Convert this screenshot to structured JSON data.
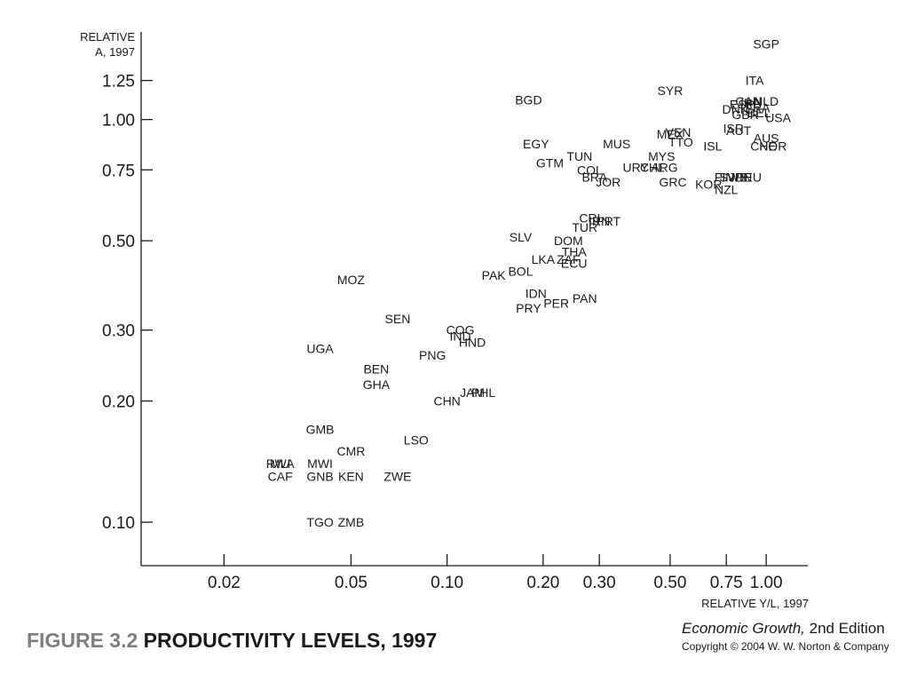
{
  "figure": {
    "number": "FIGURE 3.2",
    "title": "PRODUCTIVITY LEVELS, 1997",
    "book_title_italic": "Economic Growth,",
    "book_edition": "2nd Edition",
    "copyright": "Copyright © 2004 W. W. Norton & Company"
  },
  "chart_data": {
    "type": "scatter",
    "xlabel": "RELATIVE Y/L, 1997",
    "ylabel_line1": "RELATIVE",
    "ylabel_line2": "A, 1997",
    "x_scale": "log",
    "y_scale": "log",
    "xlim": [
      0.011,
      1.35
    ],
    "ylim": [
      0.078,
      1.65
    ],
    "x_ticks": [
      0.02,
      0.05,
      0.1,
      0.2,
      0.3,
      0.5,
      0.75,
      1.0
    ],
    "x_tick_labels": [
      "0.02",
      "0.05",
      "0.10",
      "0.20",
      "0.30",
      "0.50",
      "0.75",
      "1.00"
    ],
    "y_ticks": [
      0.1,
      0.2,
      0.3,
      0.5,
      0.75,
      1.0,
      1.25
    ],
    "y_tick_labels": [
      "0.10",
      "0.20",
      "0.30",
      "0.50",
      "0.75",
      "1.00",
      "1.25"
    ],
    "grid": false,
    "legend": "none",
    "points": [
      {
        "label": "SGP",
        "x": 1.0,
        "y": 1.54
      },
      {
        "label": "ITA",
        "x": 0.92,
        "y": 1.25
      },
      {
        "label": "BGD",
        "x": 0.18,
        "y": 1.12
      },
      {
        "label": "SYR",
        "x": 0.5,
        "y": 1.18
      },
      {
        "label": "IRL",
        "x": 0.89,
        "y": 1.1
      },
      {
        "label": "CAN",
        "x": 0.88,
        "y": 1.11
      },
      {
        "label": "FRA",
        "x": 0.94,
        "y": 1.07
      },
      {
        "label": "ESP",
        "x": 0.84,
        "y": 1.09
      },
      {
        "label": "NLD",
        "x": 1.0,
        "y": 1.11
      },
      {
        "label": "DNK",
        "x": 0.8,
        "y": 1.06
      },
      {
        "label": "GBR",
        "x": 0.86,
        "y": 1.03
      },
      {
        "label": "BEL",
        "x": 0.95,
        "y": 1.04
      },
      {
        "label": "USA",
        "x": 1.09,
        "y": 1.01
      },
      {
        "label": "ISR",
        "x": 0.79,
        "y": 0.95
      },
      {
        "label": "AUT",
        "x": 0.82,
        "y": 0.94
      },
      {
        "label": "VEN",
        "x": 0.53,
        "y": 0.93
      },
      {
        "label": "MEX",
        "x": 0.5,
        "y": 0.92
      },
      {
        "label": "TTO",
        "x": 0.54,
        "y": 0.88
      },
      {
        "label": "AUS",
        "x": 1.0,
        "y": 0.9
      },
      {
        "label": "CHE",
        "x": 0.98,
        "y": 0.86
      },
      {
        "label": "NOR",
        "x": 1.05,
        "y": 0.86
      },
      {
        "label": "ISL",
        "x": 0.68,
        "y": 0.86
      },
      {
        "label": "EGY",
        "x": 0.19,
        "y": 0.87
      },
      {
        "label": "MUS",
        "x": 0.34,
        "y": 0.87
      },
      {
        "label": "TUN",
        "x": 0.26,
        "y": 0.81
      },
      {
        "label": "MYS",
        "x": 0.47,
        "y": 0.81
      },
      {
        "label": "GTM",
        "x": 0.21,
        "y": 0.78
      },
      {
        "label": "URY",
        "x": 0.39,
        "y": 0.76
      },
      {
        "label": "CHL",
        "x": 0.44,
        "y": 0.76
      },
      {
        "label": "ARG",
        "x": 0.48,
        "y": 0.76
      },
      {
        "label": "COL",
        "x": 0.28,
        "y": 0.75
      },
      {
        "label": "BRA",
        "x": 0.29,
        "y": 0.72
      },
      {
        "label": "JOR",
        "x": 0.32,
        "y": 0.7
      },
      {
        "label": "GRC",
        "x": 0.51,
        "y": 0.7
      },
      {
        "label": "FIN",
        "x": 0.74,
        "y": 0.72
      },
      {
        "label": "SWE",
        "x": 0.79,
        "y": 0.72
      },
      {
        "label": "JPN",
        "x": 0.83,
        "y": 0.72
      },
      {
        "label": "DEU",
        "x": 0.88,
        "y": 0.72
      },
      {
        "label": "KOR",
        "x": 0.66,
        "y": 0.69
      },
      {
        "label": "NZL",
        "x": 0.75,
        "y": 0.67
      },
      {
        "label": "CRI",
        "x": 0.28,
        "y": 0.57
      },
      {
        "label": "IRN",
        "x": 0.3,
        "y": 0.56
      },
      {
        "label": "PRT",
        "x": 0.32,
        "y": 0.56
      },
      {
        "label": "TUR",
        "x": 0.27,
        "y": 0.54
      },
      {
        "label": "SLV",
        "x": 0.17,
        "y": 0.51
      },
      {
        "label": "DOM",
        "x": 0.24,
        "y": 0.5
      },
      {
        "label": "THA",
        "x": 0.25,
        "y": 0.47
      },
      {
        "label": "LKA",
        "x": 0.2,
        "y": 0.45
      },
      {
        "label": "ZAF",
        "x": 0.24,
        "y": 0.45
      },
      {
        "label": "ECU",
        "x": 0.25,
        "y": 0.44
      },
      {
        "label": "BOL",
        "x": 0.17,
        "y": 0.42
      },
      {
        "label": "PAK",
        "x": 0.14,
        "y": 0.41
      },
      {
        "label": "MOZ",
        "x": 0.05,
        "y": 0.4
      },
      {
        "label": "IDN",
        "x": 0.19,
        "y": 0.37
      },
      {
        "label": "PAN",
        "x": 0.27,
        "y": 0.36
      },
      {
        "label": "PER",
        "x": 0.22,
        "y": 0.35
      },
      {
        "label": "PRY",
        "x": 0.18,
        "y": 0.34
      },
      {
        "label": "SEN",
        "x": 0.07,
        "y": 0.32
      },
      {
        "label": "COG",
        "x": 0.11,
        "y": 0.3
      },
      {
        "label": "IND",
        "x": 0.11,
        "y": 0.29
      },
      {
        "label": "HND",
        "x": 0.12,
        "y": 0.28
      },
      {
        "label": "UGA",
        "x": 0.04,
        "y": 0.27
      },
      {
        "label": "PNG",
        "x": 0.09,
        "y": 0.26
      },
      {
        "label": "BEN",
        "x": 0.06,
        "y": 0.24
      },
      {
        "label": "GHA",
        "x": 0.06,
        "y": 0.22
      },
      {
        "label": "PHL",
        "x": 0.13,
        "y": 0.21
      },
      {
        "label": "JAM",
        "x": 0.12,
        "y": 0.21
      },
      {
        "label": "CHN",
        "x": 0.1,
        "y": 0.2
      },
      {
        "label": "GMB",
        "x": 0.04,
        "y": 0.17
      },
      {
        "label": "LSO",
        "x": 0.08,
        "y": 0.16
      },
      {
        "label": "CMR",
        "x": 0.05,
        "y": 0.15
      },
      {
        "label": "MLI",
        "x": 0.03,
        "y": 0.14
      },
      {
        "label": "RWA",
        "x": 0.03,
        "y": 0.14
      },
      {
        "label": "MWI",
        "x": 0.04,
        "y": 0.14
      },
      {
        "label": "KEN",
        "x": 0.05,
        "y": 0.13
      },
      {
        "label": "ZWE",
        "x": 0.07,
        "y": 0.13
      },
      {
        "label": "CAF",
        "x": 0.03,
        "y": 0.13
      },
      {
        "label": "GNB",
        "x": 0.04,
        "y": 0.13
      },
      {
        "label": "TGO",
        "x": 0.04,
        "y": 0.1
      },
      {
        "label": "ZMB",
        "x": 0.05,
        "y": 0.1
      }
    ]
  }
}
